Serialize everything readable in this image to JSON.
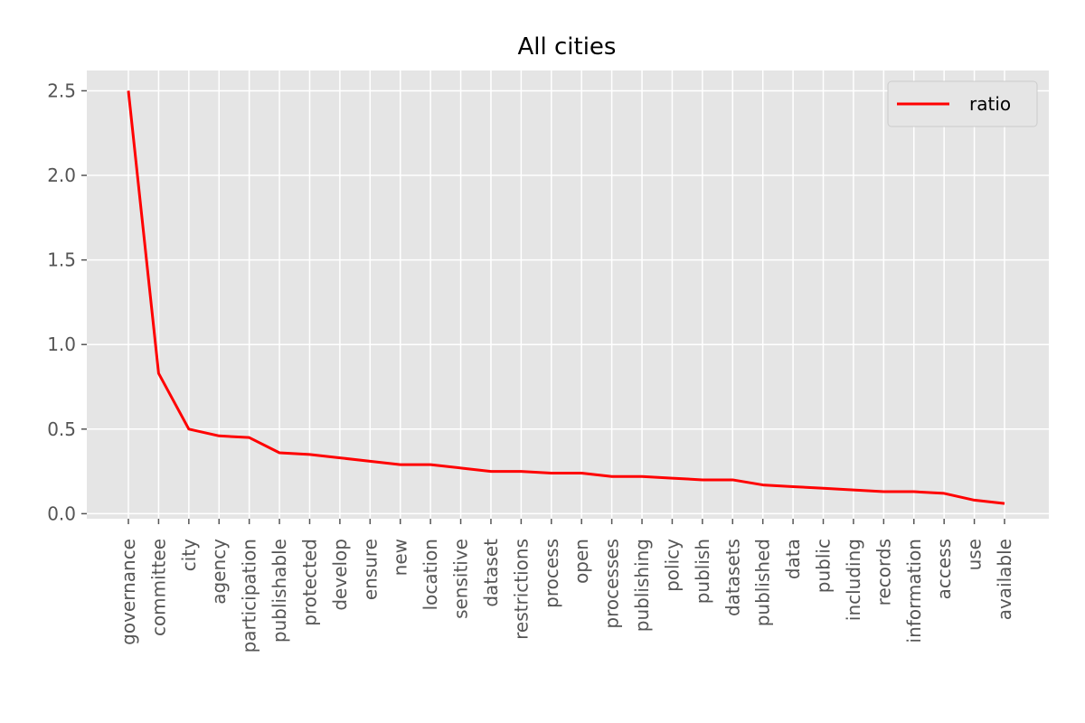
{
  "chart_data": {
    "type": "line",
    "title": "All cities",
    "xlabel": "",
    "ylabel": "",
    "grid": true,
    "legend_position": "top-right",
    "ylim": [
      -0.03,
      2.62
    ],
    "y_ticks": [
      "0.0",
      "0.5",
      "1.0",
      "1.5",
      "2.0",
      "2.5"
    ],
    "y_tick_values": [
      0.0,
      0.5,
      1.0,
      1.5,
      2.0,
      2.5
    ],
    "categories": [
      "governance",
      "committee",
      "city",
      "agency",
      "participation",
      "publishable",
      "protected",
      "develop",
      "ensure",
      "new",
      "location",
      "sensitive",
      "dataset",
      "restrictions",
      "process",
      "open",
      "processes",
      "publishing",
      "policy",
      "publish",
      "datasets",
      "published",
      "data",
      "public",
      "including",
      "records",
      "information",
      "access",
      "use",
      "available"
    ],
    "series": [
      {
        "name": "ratio",
        "color": "#ff0000",
        "values": [
          2.5,
          0.83,
          0.5,
          0.46,
          0.45,
          0.36,
          0.35,
          0.33,
          0.31,
          0.29,
          0.29,
          0.27,
          0.25,
          0.25,
          0.24,
          0.24,
          0.22,
          0.22,
          0.21,
          0.2,
          0.2,
          0.17,
          0.16,
          0.15,
          0.14,
          0.13,
          0.13,
          0.12,
          0.08,
          0.06
        ]
      }
    ],
    "colors": {
      "background": "#e5e5e5",
      "grid": "#ffffff",
      "tick_text": "#555555",
      "line": "#ff0000"
    }
  }
}
